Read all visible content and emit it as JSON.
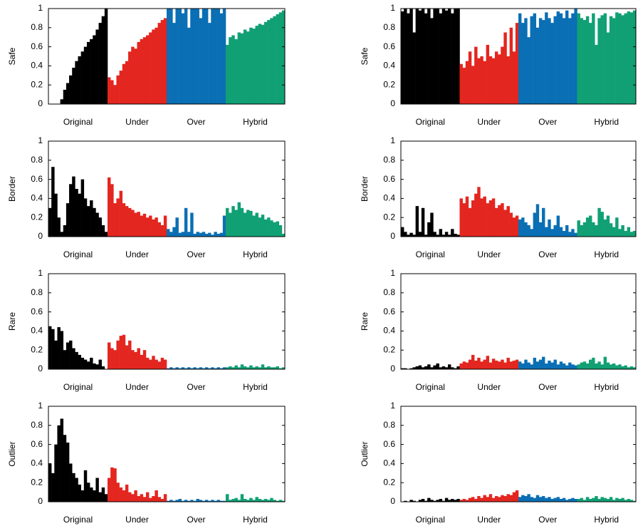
{
  "chart_data": [
    {
      "type": "bar",
      "ylabel": "Safe",
      "ylim": [
        0,
        1
      ],
      "yticks": [
        0,
        0.2,
        0.4,
        0.6,
        0.8,
        1
      ],
      "series": [
        {
          "name": "Original",
          "color": "#000000",
          "values": [
            0,
            0,
            0,
            0,
            0.05,
            0.15,
            0.22,
            0.3,
            0.38,
            0.45,
            0.5,
            0.55,
            0.6,
            0.65,
            0.68,
            0.72,
            0.78,
            0.85,
            0.92,
            1
          ]
        },
        {
          "name": "Under",
          "color": "#e3261f",
          "values": [
            0.28,
            0.25,
            0.2,
            0.3,
            0.35,
            0.42,
            0.45,
            0.55,
            0.6,
            0.58,
            0.65,
            0.68,
            0.7,
            0.72,
            0.75,
            0.78,
            0.8,
            0.85,
            0.88,
            0.9
          ]
        },
        {
          "name": "Over",
          "color": "#0a6fb4",
          "values": [
            1,
            1,
            0.85,
            1,
            1,
            0.95,
            1,
            0.8,
            1,
            1,
            1,
            0.9,
            1,
            1,
            0.85,
            1,
            1,
            1,
            0.95,
            1
          ]
        },
        {
          "name": "Hybrid",
          "color": "#10a074",
          "values": [
            0.62,
            0.7,
            0.72,
            0.68,
            0.75,
            0.74,
            0.78,
            0.76,
            0.8,
            0.79,
            0.82,
            0.84,
            0.83,
            0.86,
            0.88,
            0.9,
            0.92,
            0.94,
            0.96,
            0.98
          ]
        }
      ]
    },
    {
      "type": "bar",
      "ylabel": "Safe",
      "ylim": [
        0,
        1
      ],
      "yticks": [
        0,
        0.2,
        0.4,
        0.6,
        0.8,
        1
      ],
      "series": [
        {
          "name": "Original",
          "color": "#000000",
          "values": [
            0.97,
            1,
            0.95,
            1,
            0.75,
            1,
            0.98,
            1,
            0.95,
            1,
            0.9,
            1,
            1,
            0.95,
            1,
            0.98,
            1,
            0.95,
            1,
            1
          ]
        },
        {
          "name": "Under",
          "color": "#e3261f",
          "values": [
            0.42,
            0.38,
            0.45,
            0.55,
            0.4,
            0.6,
            0.48,
            0.5,
            0.45,
            0.62,
            0.5,
            0.48,
            0.55,
            0.52,
            0.6,
            0.75,
            0.5,
            0.8,
            0.55,
            0.85
          ]
        },
        {
          "name": "Over",
          "color": "#0a6fb4",
          "values": [
            0.95,
            0.85,
            0.9,
            0.7,
            0.92,
            0.95,
            0.8,
            0.9,
            0.88,
            0.96,
            0.9,
            0.85,
            0.92,
            0.97,
            0.95,
            0.9,
            0.98,
            0.9,
            0.95,
            1
          ]
        },
        {
          "name": "Hybrid",
          "color": "#10a074",
          "values": [
            0.95,
            0.9,
            0.88,
            0.92,
            0.85,
            0.95,
            0.62,
            0.9,
            0.93,
            0.95,
            0.75,
            0.92,
            0.9,
            0.96,
            0.95,
            0.93,
            0.95,
            0.97,
            0.96,
            0.98
          ]
        }
      ]
    },
    {
      "type": "bar",
      "ylabel": "Border",
      "ylim": [
        0,
        1
      ],
      "yticks": [
        0,
        0.2,
        0.4,
        0.6,
        0.8,
        1
      ],
      "series": [
        {
          "name": "Original",
          "color": "#000000",
          "values": [
            0.3,
            0.73,
            0.45,
            0.2,
            0.05,
            0.12,
            0.35,
            0.55,
            0.63,
            0.5,
            0.45,
            0.6,
            0.4,
            0.32,
            0.38,
            0.3,
            0.25,
            0.2,
            0.12,
            0.05
          ]
        },
        {
          "name": "Under",
          "color": "#e3261f",
          "values": [
            0.62,
            0.55,
            0.35,
            0.4,
            0.48,
            0.35,
            0.32,
            0.3,
            0.28,
            0.25,
            0.26,
            0.22,
            0.24,
            0.2,
            0.22,
            0.18,
            0.2,
            0.15,
            0.12,
            0.22
          ]
        },
        {
          "name": "Over",
          "color": "#0a6fb4",
          "values": [
            0.08,
            0.05,
            0.1,
            0.2,
            0.04,
            0.05,
            0.3,
            0.05,
            0.25,
            0.03,
            0.05,
            0.04,
            0.05,
            0.03,
            0.04,
            0.02,
            0.05,
            0.03,
            0.04,
            0.22
          ]
        },
        {
          "name": "Hybrid",
          "color": "#10a074",
          "values": [
            0.3,
            0.25,
            0.32,
            0.28,
            0.36,
            0.3,
            0.25,
            0.28,
            0.27,
            0.22,
            0.25,
            0.2,
            0.23,
            0.18,
            0.2,
            0.17,
            0.15,
            0.16,
            0.12,
            0.03
          ]
        }
      ]
    },
    {
      "type": "bar",
      "ylabel": "Border",
      "ylim": [
        0,
        1
      ],
      "yticks": [
        0,
        0.2,
        0.4,
        0.6,
        0.8,
        1
      ],
      "series": [
        {
          "name": "Original",
          "color": "#000000",
          "values": [
            0.1,
            0.05,
            0.02,
            0.04,
            0.02,
            0.32,
            0.05,
            0.3,
            0.02,
            0.15,
            0.25,
            0.05,
            0.02,
            0.08,
            0.02,
            0.05,
            0.02,
            0.08,
            0.03,
            0.02
          ]
        },
        {
          "name": "Under",
          "color": "#e3261f",
          "values": [
            0.4,
            0.35,
            0.42,
            0.3,
            0.38,
            0.45,
            0.52,
            0.4,
            0.42,
            0.35,
            0.38,
            0.4,
            0.3,
            0.33,
            0.35,
            0.28,
            0.32,
            0.25,
            0.2,
            0.22
          ]
        },
        {
          "name": "Over",
          "color": "#0a6fb4",
          "values": [
            0.18,
            0.2,
            0.15,
            0.12,
            0.08,
            0.25,
            0.34,
            0.15,
            0.3,
            0.1,
            0.18,
            0.08,
            0.12,
            0.22,
            0.1,
            0.06,
            0.12,
            0.05,
            0.08,
            0.04
          ]
        },
        {
          "name": "Hybrid",
          "color": "#10a074",
          "values": [
            0.17,
            0.12,
            0.15,
            0.2,
            0.22,
            0.15,
            0.12,
            0.3,
            0.26,
            0.18,
            0.22,
            0.14,
            0.1,
            0.2,
            0.08,
            0.12,
            0.06,
            0.1,
            0.05,
            0.06
          ]
        }
      ]
    },
    {
      "type": "bar",
      "ylabel": "Rare",
      "ylim": [
        0,
        1
      ],
      "yticks": [
        0,
        0.2,
        0.4,
        0.6,
        0.8,
        1
      ],
      "series": [
        {
          "name": "Original",
          "color": "#000000",
          "values": [
            0.45,
            0.42,
            0.3,
            0.44,
            0.4,
            0.2,
            0.28,
            0.3,
            0.22,
            0.18,
            0.15,
            0.12,
            0.1,
            0.08,
            0.12,
            0.06,
            0.05,
            0.1,
            0.03,
            0
          ]
        },
        {
          "name": "Under",
          "color": "#e3261f",
          "values": [
            0.28,
            0.22,
            0.2,
            0.3,
            0.35,
            0.36,
            0.25,
            0.3,
            0.2,
            0.18,
            0.22,
            0.15,
            0.2,
            0.12,
            0.1,
            0.14,
            0.1,
            0.08,
            0.12,
            0.1
          ]
        },
        {
          "name": "Over",
          "color": "#0a6fb4",
          "values": [
            0.01,
            0.02,
            0.01,
            0.02,
            0.01,
            0.02,
            0.01,
            0.02,
            0.01,
            0.02,
            0.01,
            0.02,
            0.01,
            0.02,
            0.01,
            0.02,
            0.01,
            0.02,
            0.01,
            0.02
          ]
        },
        {
          "name": "Hybrid",
          "color": "#10a074",
          "values": [
            0.02,
            0.03,
            0.02,
            0.04,
            0.02,
            0.05,
            0.03,
            0.02,
            0.04,
            0.02,
            0.03,
            0.02,
            0.05,
            0.02,
            0.03,
            0.02,
            0.02,
            0.03,
            0.01,
            0.02
          ]
        }
      ]
    },
    {
      "type": "bar",
      "ylabel": "Rare",
      "ylim": [
        0,
        1
      ],
      "yticks": [
        0,
        0.2,
        0.4,
        0.6,
        0.8,
        1
      ],
      "series": [
        {
          "name": "Original",
          "color": "#000000",
          "values": [
            0.01,
            0.01,
            0,
            0.01,
            0.02,
            0.03,
            0.04,
            0.02,
            0.03,
            0.05,
            0.02,
            0.04,
            0.06,
            0.02,
            0.03,
            0.02,
            0.05,
            0.02,
            0.01,
            0.03
          ]
        },
        {
          "name": "Under",
          "color": "#e3261f",
          "values": [
            0.06,
            0.08,
            0.07,
            0.1,
            0.15,
            0.09,
            0.12,
            0.08,
            0.1,
            0.14,
            0.07,
            0.11,
            0.09,
            0.08,
            0.1,
            0.07,
            0.12,
            0.08,
            0.09,
            0.1
          ]
        },
        {
          "name": "Over",
          "color": "#0a6fb4",
          "values": [
            0.08,
            0.06,
            0.1,
            0.07,
            0.05,
            0.12,
            0.08,
            0.1,
            0.13,
            0.06,
            0.09,
            0.07,
            0.1,
            0.05,
            0.08,
            0.06,
            0.04,
            0.07,
            0.05,
            0.04
          ]
        },
        {
          "name": "Hybrid",
          "color": "#10a074",
          "values": [
            0.05,
            0.07,
            0.08,
            0.06,
            0.1,
            0.12,
            0.06,
            0.08,
            0.05,
            0.13,
            0.07,
            0.05,
            0.06,
            0.04,
            0.05,
            0.03,
            0.04,
            0.02,
            0.03,
            0.02
          ]
        }
      ]
    },
    {
      "type": "bar",
      "ylabel": "Outlier",
      "ylim": [
        0,
        1
      ],
      "yticks": [
        0,
        0.2,
        0.4,
        0.6,
        0.8,
        1
      ],
      "series": [
        {
          "name": "Original",
          "color": "#000000",
          "values": [
            0.4,
            0.3,
            0.6,
            0.8,
            0.87,
            0.7,
            0.62,
            0.4,
            0.3,
            0.25,
            0.18,
            0.12,
            0.33,
            0.2,
            0.15,
            0.12,
            0.25,
            0.1,
            0.15,
            0.08
          ]
        },
        {
          "name": "Under",
          "color": "#e3261f",
          "values": [
            0.25,
            0.36,
            0.35,
            0.2,
            0.15,
            0.12,
            0.18,
            0.1,
            0.08,
            0.12,
            0.06,
            0.08,
            0.05,
            0.1,
            0.04,
            0.06,
            0.12,
            0.05,
            0.03,
            0.08
          ]
        },
        {
          "name": "Over",
          "color": "#0a6fb4",
          "values": [
            0.01,
            0.02,
            0.01,
            0.02,
            0.03,
            0.01,
            0.02,
            0.01,
            0.02,
            0.01,
            0.03,
            0.02,
            0.01,
            0.02,
            0.01,
            0.02,
            0.01,
            0.02,
            0.01,
            0.01
          ]
        },
        {
          "name": "Hybrid",
          "color": "#10a074",
          "values": [
            0.08,
            0.02,
            0.03,
            0.04,
            0.02,
            0.08,
            0.03,
            0.02,
            0.04,
            0.02,
            0.05,
            0.03,
            0.02,
            0.03,
            0.02,
            0.04,
            0.02,
            0.01,
            0.02,
            0.01
          ]
        }
      ]
    },
    {
      "type": "bar",
      "ylabel": "Outlier",
      "ylim": [
        0,
        1
      ],
      "yticks": [
        0,
        0.2,
        0.4,
        0.6,
        0.8,
        1
      ],
      "series": [
        {
          "name": "Original",
          "color": "#000000",
          "values": [
            0,
            0.01,
            0,
            0.02,
            0.01,
            0,
            0.02,
            0.03,
            0.01,
            0.04,
            0.02,
            0.01,
            0.02,
            0.03,
            0.01,
            0.04,
            0.02,
            0.03,
            0.02,
            0.03
          ]
        },
        {
          "name": "Under",
          "color": "#e3261f",
          "values": [
            0.02,
            0.03,
            0.02,
            0.04,
            0.05,
            0.03,
            0.06,
            0.04,
            0.07,
            0.05,
            0.08,
            0.04,
            0.06,
            0.05,
            0.07,
            0.06,
            0.08,
            0.07,
            0.1,
            0.12
          ]
        },
        {
          "name": "Over",
          "color": "#0a6fb4",
          "values": [
            0.05,
            0.07,
            0.06,
            0.08,
            0.05,
            0.04,
            0.07,
            0.05,
            0.06,
            0.04,
            0.05,
            0.03,
            0.04,
            0.05,
            0.03,
            0.04,
            0.02,
            0.03,
            0.04,
            0.03
          ]
        },
        {
          "name": "Hybrid",
          "color": "#10a074",
          "values": [
            0.03,
            0.04,
            0.02,
            0.05,
            0.03,
            0.04,
            0.06,
            0.03,
            0.05,
            0.04,
            0.03,
            0.05,
            0.02,
            0.04,
            0.03,
            0.04,
            0.02,
            0.03,
            0.02,
            0.01
          ]
        }
      ]
    }
  ]
}
